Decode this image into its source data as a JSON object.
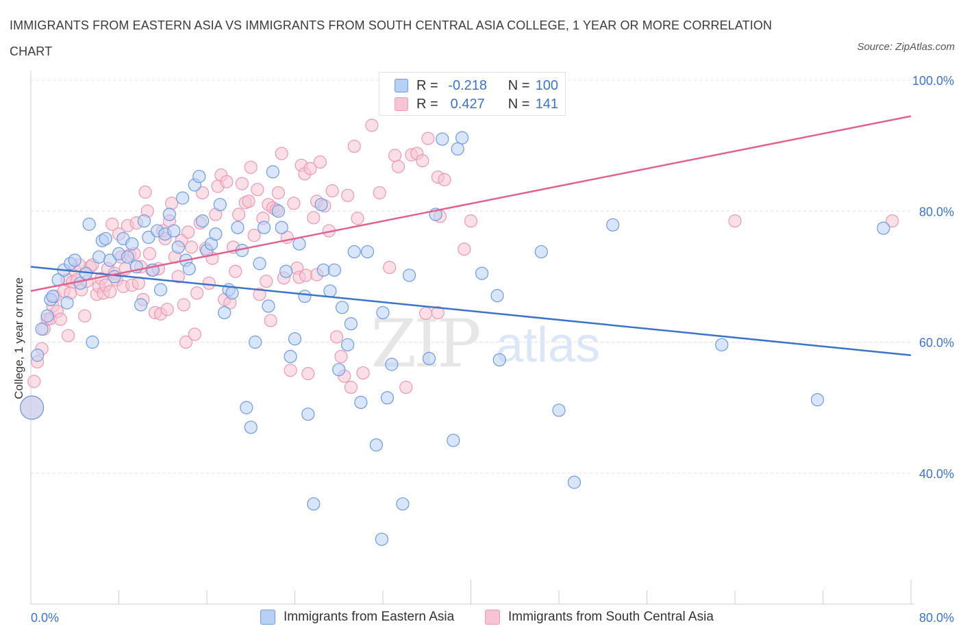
{
  "title": "IMMIGRANTS FROM EASTERN ASIA VS IMMIGRANTS FROM SOUTH CENTRAL ASIA COLLEGE, 1 YEAR OR MORE CORRELATION CHART",
  "source": "Source: ZipAtlas.com",
  "watermark": {
    "zip": "ZIP",
    "atlas": "atlas"
  },
  "colors": {
    "blue": "#3b73c8",
    "blue_fill": "#b9d0f5",
    "blue_stroke": "#6d9ae0",
    "pink": "#e0628f",
    "pink_fill": "#f7c4d3",
    "pink_stroke": "#ec98b3"
  },
  "legend_top": {
    "blue": {
      "r_label": "R =",
      "r_value": "-0.218",
      "n_label": "N =",
      "n_value": "100"
    },
    "pink": {
      "r_label": "R =",
      "r_value": "0.427",
      "n_label": "N =",
      "n_value": "141"
    }
  },
  "legend_bottom": {
    "blue": "Immigrants from Eastern Asia",
    "pink": "Immigrants from South Central Asia"
  },
  "chart_data": {
    "type": "scatter",
    "title": "IMMIGRANTS FROM EASTERN ASIA VS IMMIGRANTS FROM SOUTH CENTRAL ASIA COLLEGE, 1 YEAR OR MORE CORRELATION CHART",
    "xlabel": "",
    "ylabel": "College, 1 year or more",
    "xlim": [
      0,
      80
    ],
    "ylim": [
      20,
      100
    ],
    "x_tick_labels": [
      "0.0%",
      "80.0%"
    ],
    "y_tick_labels": [
      "100.0%",
      "80.0%",
      "60.0%",
      "40.0%"
    ],
    "y_ticks": [
      100,
      80,
      60,
      40
    ],
    "grid": true,
    "legend": "top-center",
    "series": [
      {
        "name": "Immigrants from Eastern Asia",
        "color": "#3b73c8",
        "R": -0.218,
        "N": 100,
        "trend": [
          [
            0,
            71.5
          ],
          [
            80,
            58.0
          ]
        ],
        "points": [
          [
            0.1,
            50
          ],
          [
            0.6,
            58
          ],
          [
            1.0,
            62
          ],
          [
            1.5,
            64
          ],
          [
            1.8,
            66.5
          ],
          [
            2.0,
            67
          ],
          [
            2.5,
            69.5
          ],
          [
            3.0,
            71
          ],
          [
            3.3,
            66
          ],
          [
            3.6,
            72
          ],
          [
            4.0,
            72.5
          ],
          [
            4.5,
            69
          ],
          [
            5.0,
            70.5
          ],
          [
            5.3,
            78
          ],
          [
            5.6,
            60
          ],
          [
            6.2,
            73
          ],
          [
            6.5,
            75.5
          ],
          [
            6.8,
            75.8
          ],
          [
            7.2,
            72.5
          ],
          [
            7.6,
            70
          ],
          [
            8.0,
            73.5
          ],
          [
            8.4,
            75.8
          ],
          [
            8.8,
            73
          ],
          [
            9.2,
            75
          ],
          [
            9.6,
            71.5
          ],
          [
            10.0,
            65.7
          ],
          [
            10.3,
            78.5
          ],
          [
            10.7,
            76
          ],
          [
            11.1,
            71
          ],
          [
            11.5,
            77
          ],
          [
            11.8,
            68
          ],
          [
            12.2,
            76.5
          ],
          [
            12.6,
            79.5
          ],
          [
            13.0,
            77
          ],
          [
            13.4,
            74.5
          ],
          [
            13.8,
            82
          ],
          [
            14.1,
            72.5
          ],
          [
            14.4,
            71.2
          ],
          [
            14.9,
            84
          ],
          [
            15.3,
            85.3
          ],
          [
            15.6,
            78.5
          ],
          [
            16.0,
            74
          ],
          [
            16.4,
            75
          ],
          [
            16.8,
            76.5
          ],
          [
            17.2,
            81
          ],
          [
            17.6,
            64.5
          ],
          [
            18.0,
            68
          ],
          [
            18.3,
            67.5
          ],
          [
            18.8,
            77.5
          ],
          [
            19.2,
            74
          ],
          [
            19.6,
            50
          ],
          [
            20.0,
            47
          ],
          [
            20.4,
            60
          ],
          [
            20.8,
            72
          ],
          [
            21.2,
            77.5
          ],
          [
            21.6,
            65.5
          ],
          [
            22.0,
            86
          ],
          [
            22.5,
            80
          ],
          [
            22.8,
            77.5
          ],
          [
            23.2,
            70.8
          ],
          [
            23.6,
            57.8
          ],
          [
            24.0,
            60.5
          ],
          [
            24.4,
            75
          ],
          [
            24.9,
            67
          ],
          [
            25.2,
            49
          ],
          [
            25.7,
            35.3
          ],
          [
            26.4,
            81
          ],
          [
            26.6,
            71
          ],
          [
            27.2,
            67.8
          ],
          [
            27.6,
            71
          ],
          [
            28.0,
            55.8
          ],
          [
            28.3,
            65.3
          ],
          [
            28.8,
            59.6
          ],
          [
            29.1,
            62.8
          ],
          [
            29.4,
            73.8
          ],
          [
            30.0,
            50.8
          ],
          [
            30.6,
            73.8
          ],
          [
            31.4,
            44.3
          ],
          [
            32.0,
            64.5
          ],
          [
            32.4,
            51.5
          ],
          [
            32.8,
            56.6
          ],
          [
            33.8,
            35.3
          ],
          [
            34.4,
            70.2
          ],
          [
            36.2,
            57.5
          ],
          [
            36.8,
            79.5
          ],
          [
            37.4,
            91
          ],
          [
            38.4,
            45
          ],
          [
            38.8,
            89.5
          ],
          [
            39.2,
            91.2
          ],
          [
            41.0,
            70.5
          ],
          [
            42.4,
            67.1
          ],
          [
            42.6,
            57.3
          ],
          [
            46.4,
            73.8
          ],
          [
            48.0,
            49.6
          ],
          [
            49.4,
            38.6
          ],
          [
            52.9,
            77.9
          ],
          [
            62.8,
            59.6
          ],
          [
            71.5,
            51.2
          ],
          [
            77.5,
            77.4
          ],
          [
            31.9,
            29.9
          ]
        ]
      },
      {
        "name": "Immigrants from South Central Asia",
        "color": "#e0628f",
        "R": 0.427,
        "N": 141,
        "trend": [
          [
            0,
            67.8
          ],
          [
            80,
            94.5
          ]
        ],
        "points": [
          [
            0.1,
            50
          ],
          [
            0.3,
            54
          ],
          [
            0.6,
            57
          ],
          [
            1.0,
            59
          ],
          [
            1.2,
            62
          ],
          [
            1.5,
            63.5
          ],
          [
            1.8,
            63.6
          ],
          [
            2.0,
            65.5
          ],
          [
            2.2,
            67
          ],
          [
            2.4,
            64.7
          ],
          [
            2.7,
            63.5
          ],
          [
            3.0,
            67.8
          ],
          [
            3.3,
            69.5
          ],
          [
            3.4,
            61
          ],
          [
            3.6,
            67.5
          ],
          [
            3.8,
            69.2
          ],
          [
            4.0,
            71
          ],
          [
            4.2,
            69.5
          ],
          [
            4.4,
            71.8
          ],
          [
            4.6,
            68
          ],
          [
            4.9,
            64
          ],
          [
            5.1,
            69.3
          ],
          [
            5.4,
            71.5
          ],
          [
            5.6,
            71.8
          ],
          [
            6.0,
            67.3
          ],
          [
            6.2,
            68.5
          ],
          [
            6.4,
            69.7
          ],
          [
            6.6,
            67.5
          ],
          [
            6.8,
            68.7
          ],
          [
            7.0,
            71.2
          ],
          [
            7.2,
            67.7
          ],
          [
            7.4,
            78
          ],
          [
            7.6,
            70.5
          ],
          [
            7.8,
            69.5
          ],
          [
            8.0,
            76.5
          ],
          [
            8.2,
            73
          ],
          [
            8.4,
            68.5
          ],
          [
            8.6,
            71.2
          ],
          [
            8.8,
            77.8
          ],
          [
            9.0,
            73.3
          ],
          [
            9.2,
            68.7
          ],
          [
            9.4,
            73.5
          ],
          [
            9.6,
            78.2
          ],
          [
            9.8,
            69
          ],
          [
            10.0,
            71.5
          ],
          [
            10.2,
            66.5
          ],
          [
            10.4,
            82.9
          ],
          [
            10.6,
            80
          ],
          [
            10.8,
            73.5
          ],
          [
            11.0,
            71
          ],
          [
            11.3,
            64.5
          ],
          [
            11.6,
            71.2
          ],
          [
            11.8,
            64.3
          ],
          [
            12.0,
            77
          ],
          [
            12.2,
            75.8
          ],
          [
            12.4,
            65
          ],
          [
            12.6,
            78.5
          ],
          [
            12.8,
            81.2
          ],
          [
            13.1,
            73
          ],
          [
            13.4,
            70
          ],
          [
            13.7,
            75.5
          ],
          [
            13.9,
            65.7
          ],
          [
            14.1,
            60
          ],
          [
            14.3,
            76.8
          ],
          [
            14.6,
            74.5
          ],
          [
            14.9,
            61.2
          ],
          [
            15.1,
            67.5
          ],
          [
            15.4,
            78.2
          ],
          [
            15.6,
            82.8
          ],
          [
            15.9,
            74.3
          ],
          [
            16.2,
            69
          ],
          [
            16.5,
            72.8
          ],
          [
            16.8,
            79.5
          ],
          [
            17.0,
            83.8
          ],
          [
            17.3,
            85.5
          ],
          [
            17.6,
            66.5
          ],
          [
            17.8,
            84.5
          ],
          [
            18.1,
            66
          ],
          [
            18.4,
            74.5
          ],
          [
            18.6,
            70.8
          ],
          [
            18.9,
            79.5
          ],
          [
            19.2,
            84.2
          ],
          [
            19.5,
            81.3
          ],
          [
            19.8,
            81.5
          ],
          [
            20.0,
            86.7
          ],
          [
            20.3,
            76.3
          ],
          [
            20.6,
            83.3
          ],
          [
            20.8,
            67.3
          ],
          [
            21.1,
            78.9
          ],
          [
            21.4,
            69.3
          ],
          [
            21.6,
            81
          ],
          [
            21.8,
            63.3
          ],
          [
            22.0,
            80.5
          ],
          [
            22.3,
            80.2
          ],
          [
            22.5,
            82.8
          ],
          [
            22.8,
            88.8
          ],
          [
            23.0,
            69.8
          ],
          [
            23.3,
            76
          ],
          [
            23.6,
            55.7
          ],
          [
            23.9,
            81.2
          ],
          [
            24.2,
            71.3
          ],
          [
            24.4,
            69.9
          ],
          [
            24.6,
            87
          ],
          [
            24.9,
            85.7
          ],
          [
            25.2,
            55.2
          ],
          [
            25.4,
            86.5
          ],
          [
            25.7,
            79
          ],
          [
            26.0,
            81.5
          ],
          [
            26.3,
            87.5
          ],
          [
            26.7,
            80.8
          ],
          [
            27.1,
            77
          ],
          [
            27.4,
            83.1
          ],
          [
            27.8,
            60.8
          ],
          [
            28.2,
            57.8
          ],
          [
            28.5,
            54.8
          ],
          [
            28.8,
            82.4
          ],
          [
            29.1,
            53.1
          ],
          [
            29.4,
            89.9
          ],
          [
            29.7,
            78.9
          ],
          [
            30.2,
            55.3
          ],
          [
            31.0,
            93.1
          ],
          [
            31.7,
            82.8
          ],
          [
            32.6,
            71.4
          ],
          [
            33.1,
            88.5
          ],
          [
            33.4,
            86.8
          ],
          [
            34.1,
            53.1
          ],
          [
            34.6,
            88.6
          ],
          [
            35.1,
            88.8
          ],
          [
            35.6,
            87.7
          ],
          [
            35.9,
            64.4
          ],
          [
            36.1,
            91.1
          ],
          [
            37.0,
            85.2
          ],
          [
            37.2,
            79.2
          ],
          [
            37.0,
            64.5
          ],
          [
            37.6,
            84.8
          ],
          [
            39.4,
            74.2
          ],
          [
            40.0,
            78.5
          ],
          [
            64.0,
            78.5
          ],
          [
            78.3,
            78.5
          ],
          [
            25.0,
            70.2
          ],
          [
            26.0,
            70.3
          ]
        ]
      }
    ]
  }
}
